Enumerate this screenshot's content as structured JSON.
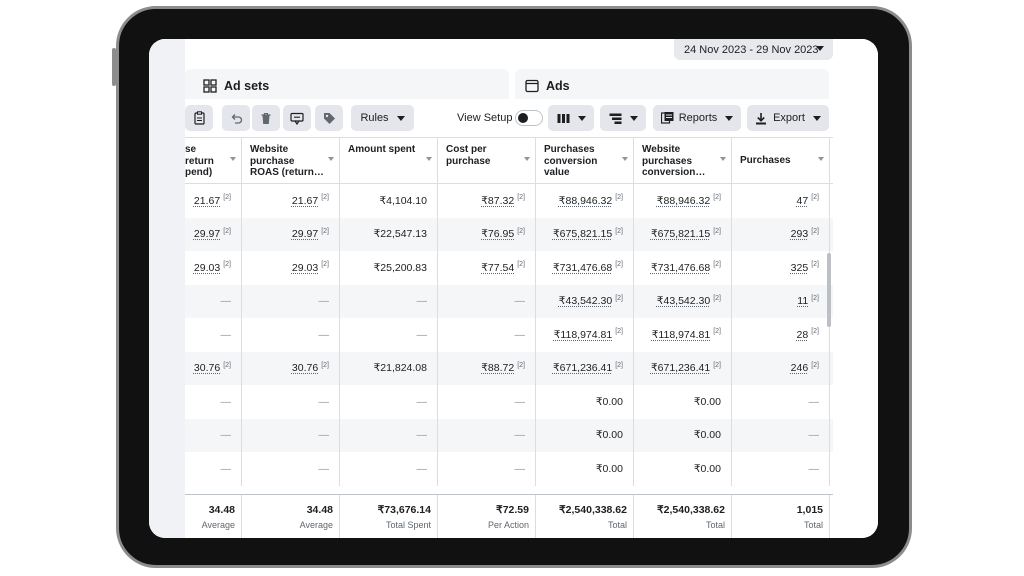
{
  "date_range": "24 Nov 2023 - 29 Nov 2023",
  "tabs": {
    "ad_sets": "Ad sets",
    "ads": "Ads"
  },
  "toolbar": {
    "rules": "Rules",
    "view_setup": "View Setup",
    "reports": "Reports",
    "export": "Export",
    "icons": [
      "clipboard-icon",
      "undo-icon",
      "trash-icon",
      "tag-edit-icon",
      "tag-icon",
      "columns-icon",
      "breakdown-icon",
      "reports-icon",
      "export-icon"
    ]
  },
  "columns": [
    {
      "label": "se\nreturn\npend)"
    },
    {
      "label": "Website\npurchase\nROAS (return…"
    },
    {
      "label": "Amount spent"
    },
    {
      "label": "Cost per\npurchase"
    },
    {
      "label": "Purchases\nconversion\nvalue"
    },
    {
      "label": "Website\npurchases\nconversion…"
    },
    {
      "label": "Purchases"
    }
  ],
  "rows": [
    {
      "cells": [
        "21.67",
        "21.67",
        "₹4,104.10",
        "₹87.32",
        "₹88,946.32",
        "₹88,946.32",
        "47"
      ]
    },
    {
      "cells": [
        "29.97",
        "29.97",
        "₹22,547.13",
        "₹76.95",
        "₹675,821.15",
        "₹675,821.15",
        "293"
      ]
    },
    {
      "cells": [
        "29.03",
        "29.03",
        "₹25,200.83",
        "₹77.54",
        "₹731,476.68",
        "₹731,476.68",
        "325"
      ]
    },
    {
      "cells": [
        "—",
        "—",
        "—",
        "—",
        "₹43,542.30",
        "₹43,542.30",
        "11"
      ]
    },
    {
      "cells": [
        "—",
        "—",
        "—",
        "—",
        "₹118,974.81",
        "₹118,974.81",
        "28"
      ]
    },
    {
      "cells": [
        "30.76",
        "30.76",
        "₹21,824.08",
        "₹88.72",
        "₹671,236.41",
        "₹671,236.41",
        "246"
      ]
    },
    {
      "cells": [
        "—",
        "—",
        "—",
        "—",
        "₹0.00",
        "₹0.00",
        "—"
      ]
    },
    {
      "cells": [
        "—",
        "—",
        "—",
        "—",
        "₹0.00",
        "₹0.00",
        "—"
      ]
    },
    {
      "cells": [
        "—",
        "—",
        "—",
        "—",
        "₹0.00",
        "₹0.00",
        "—"
      ]
    }
  ],
  "footnote": "[2]",
  "totals": [
    {
      "value": "34.48",
      "label": "Average"
    },
    {
      "value": "34.48",
      "label": "Average"
    },
    {
      "value": "₹73,676.14",
      "label": "Total Spent"
    },
    {
      "value": "₹72.59",
      "label": "Per Action"
    },
    {
      "value": "₹2,540,338.62",
      "label": "Total"
    },
    {
      "value": "₹2,540,338.62",
      "label": "Total"
    },
    {
      "value": "1,015",
      "label": "Total"
    }
  ],
  "colors": {
    "header_bg": "#f5f6f7",
    "button_bg": "#e4e6eb",
    "border": "#dadde1",
    "text": "#1c1e21"
  }
}
